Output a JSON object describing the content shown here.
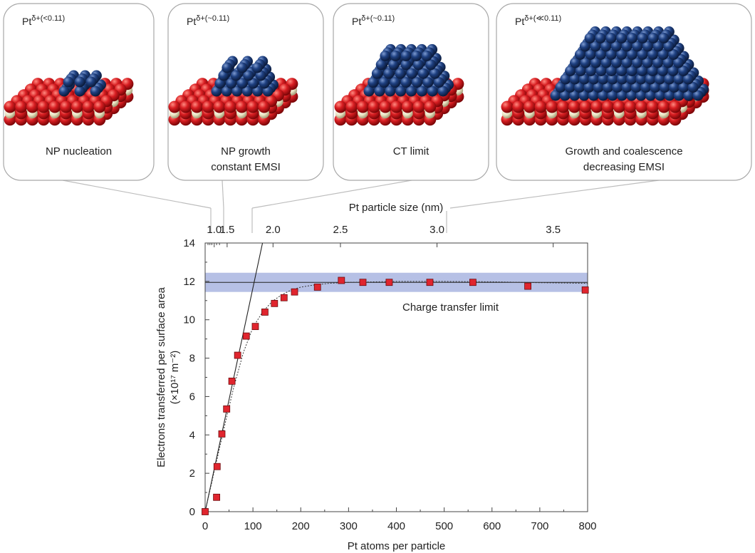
{
  "chart_data": {
    "type": "scatter",
    "xlabel": "Pt atoms per particle",
    "ylabel_line1": "Electrons transferred per surface area",
    "ylabel_line2": "(×10¹⁷ m⁻²)",
    "top_axis_label": "Pt particle size (nm)",
    "xlim": [
      0,
      800
    ],
    "ylim": [
      0,
      14
    ],
    "xticks": [
      0,
      100,
      200,
      300,
      400,
      500,
      600,
      700,
      800
    ],
    "yticks": [
      0,
      2,
      4,
      6,
      8,
      10,
      12,
      14
    ],
    "top_ticks": [
      {
        "label": "1.0",
        "atoms": 19
      },
      {
        "label": "1.5",
        "atoms": 46
      },
      {
        "label": "2.0",
        "atoms": 142
      },
      {
        "label": "2.5",
        "atoms": 283
      },
      {
        "label": "3.0",
        "atoms": 485
      },
      {
        "label": "3.5",
        "atoms": 728
      }
    ],
    "points": [
      {
        "x": 0,
        "y": 0
      },
      {
        "x": 24,
        "y": 0.75
      },
      {
        "x": 25,
        "y": 2.35
      },
      {
        "x": 35,
        "y": 4.05
      },
      {
        "x": 45,
        "y": 5.35
      },
      {
        "x": 56,
        "y": 6.8
      },
      {
        "x": 68,
        "y": 8.15
      },
      {
        "x": 86,
        "y": 9.15
      },
      {
        "x": 105,
        "y": 9.65
      },
      {
        "x": 125,
        "y": 10.4
      },
      {
        "x": 145,
        "y": 10.85
      },
      {
        "x": 165,
        "y": 11.15
      },
      {
        "x": 187,
        "y": 11.45
      },
      {
        "x": 235,
        "y": 11.7
      },
      {
        "x": 285,
        "y": 12.05
      },
      {
        "x": 330,
        "y": 11.95
      },
      {
        "x": 385,
        "y": 11.95
      },
      {
        "x": 470,
        "y": 11.95
      },
      {
        "x": 560,
        "y": 11.95
      },
      {
        "x": 675,
        "y": 11.75
      },
      {
        "x": 795,
        "y": 11.55
      }
    ],
    "fit_curve": [
      [
        0,
        0
      ],
      [
        20,
        2.2
      ],
      [
        40,
        4.4
      ],
      [
        60,
        6.5
      ],
      [
        80,
        8.3
      ],
      [
        100,
        9.6
      ],
      [
        120,
        10.4
      ],
      [
        140,
        10.95
      ],
      [
        160,
        11.3
      ],
      [
        180,
        11.55
      ],
      [
        200,
        11.7
      ],
      [
        230,
        11.82
      ],
      [
        260,
        11.9
      ],
      [
        300,
        11.95
      ],
      [
        400,
        12.0
      ],
      [
        500,
        12.0
      ],
      [
        600,
        11.98
      ],
      [
        700,
        11.93
      ],
      [
        800,
        11.9
      ]
    ],
    "linear_fit": [
      [
        0,
        0
      ],
      [
        120,
        14
      ]
    ],
    "charge_transfer_limit": {
      "value": 11.95,
      "band": [
        11.45,
        12.45
      ],
      "label": "Charge transfer limit"
    },
    "grid": false,
    "colors": {
      "marker": "#e0252e",
      "band": "#a9b5e0",
      "line": "#222222"
    }
  },
  "panels": [
    {
      "ox": "Pt",
      "ox_sup": "δ+(<0.11)",
      "caption": [
        "NP nucleation"
      ]
    },
    {
      "ox": "Pt",
      "ox_sup": "δ+(~0.11)",
      "caption": [
        "NP growth",
        "constant EMSI"
      ]
    },
    {
      "ox": "Pt",
      "ox_sup": "δ+(~0.11)",
      "caption": [
        "CT limit"
      ]
    },
    {
      "ox": "Pt",
      "ox_sup": "δ+(≪0.11)",
      "caption": [
        "Growth and coalescence",
        "decreasing EMSI"
      ]
    }
  ],
  "colors": {
    "oxygen": "#d0171b",
    "cerium": "#ece6c4",
    "platinum": "#1e3d78"
  }
}
